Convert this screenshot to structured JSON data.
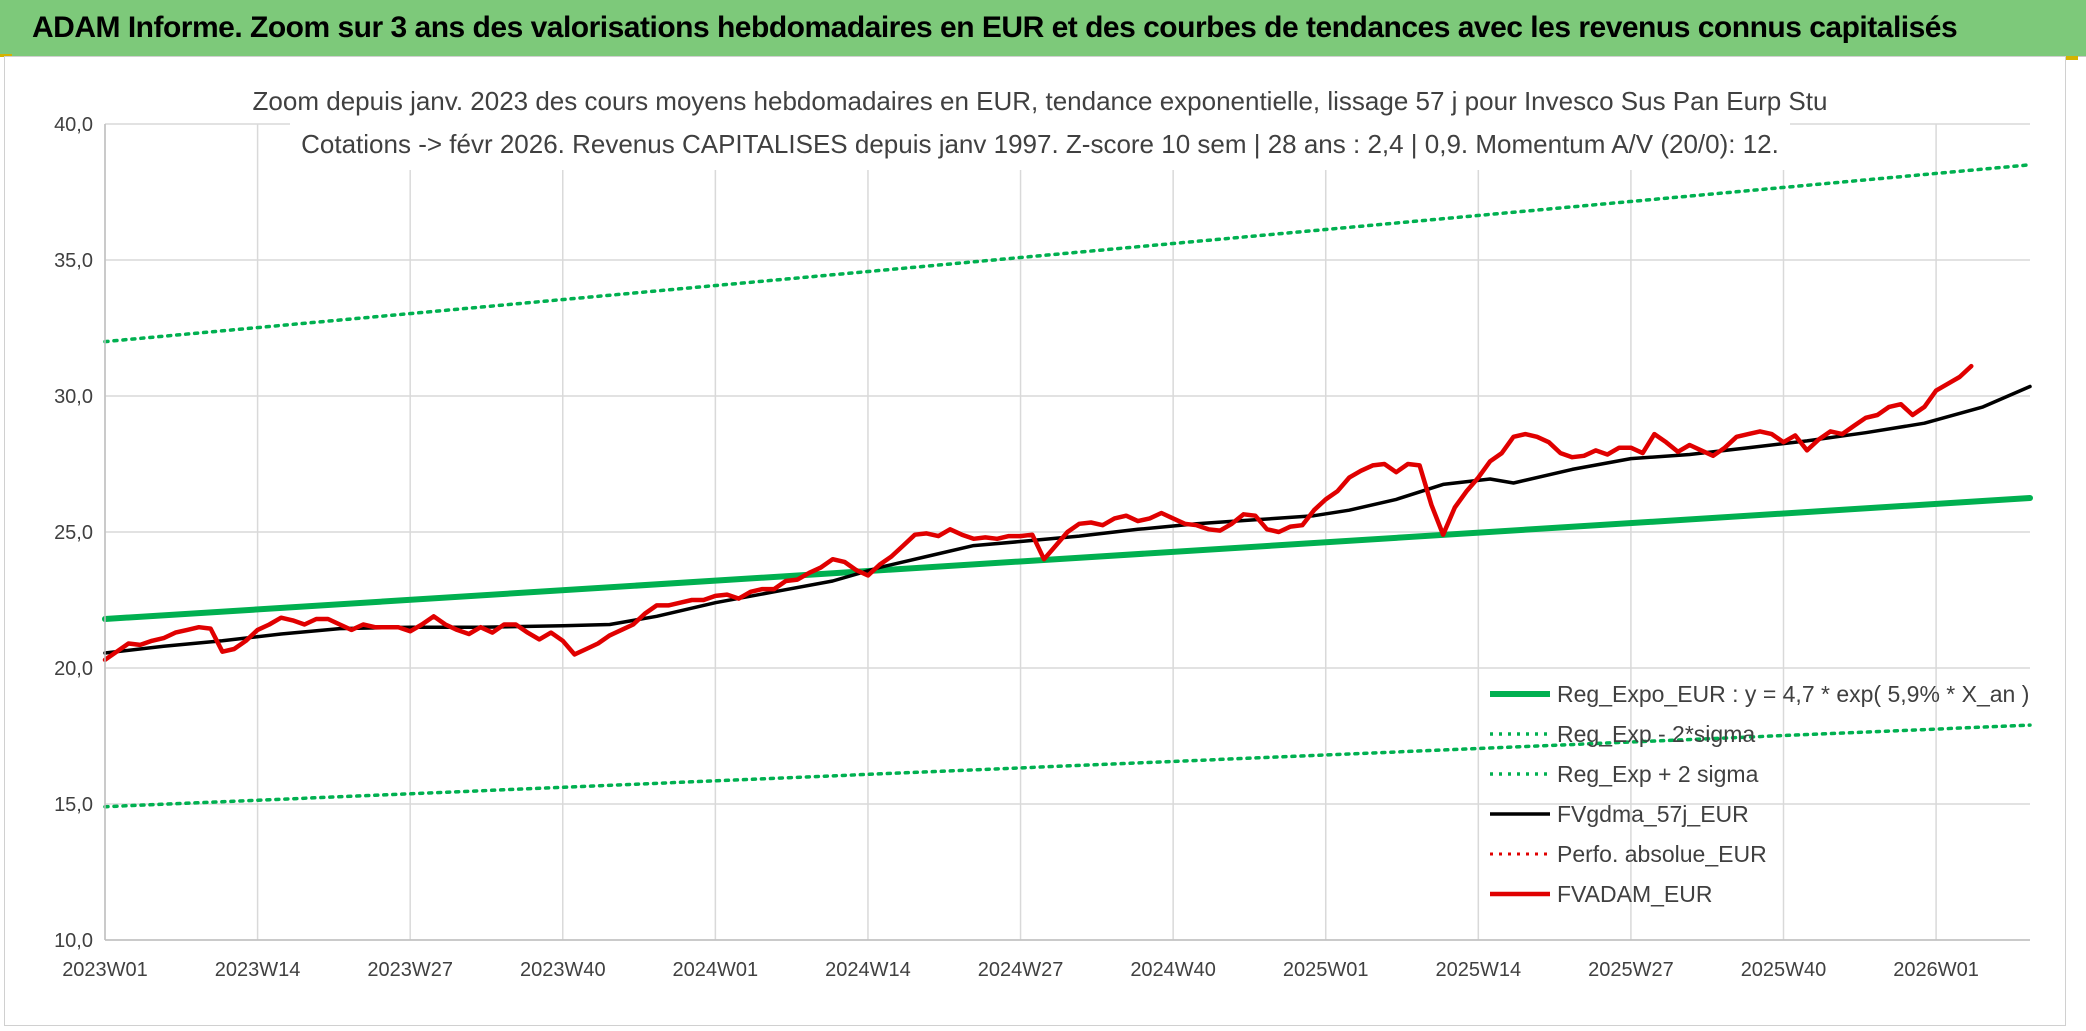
{
  "header": {
    "title": "ADAM Informe. Zoom sur 3 ans des valorisations hebdomadaires en EUR et des courbes de tendances avec les revenus connus capitalisés"
  },
  "chart_data": {
    "type": "line",
    "title_line1": "Zoom depuis janv. 2023 des cours moyens hebdomadaires en EUR, tendance exponentielle, lissage 57 j pour Invesco Sus Pan Eurp Stu",
    "title_line2": "Cotations -> févr 2026. Revenus CAPITALISES depuis janv 1997. Z-score 10 sem | 28 ans : 2,4 | 0,9. Momentum A/V (20/0): 12.",
    "xlabel": "",
    "ylabel": "",
    "ylim": [
      10,
      40
    ],
    "y_ticks": [
      "10,0",
      "15,0",
      "20,0",
      "25,0",
      "30,0",
      "35,0",
      "40,0"
    ],
    "y_tick_values": [
      10,
      15,
      20,
      25,
      30,
      35,
      40
    ],
    "x_ticks": [
      "2023W01",
      "2023W14",
      "2023W27",
      "2023W40",
      "2024W01",
      "2024W14",
      "2024W27",
      "2024W40",
      "2025W01",
      "2025W14",
      "2025W27",
      "2025W40",
      "2026W01"
    ],
    "x_tick_weeks": [
      0,
      13,
      26,
      39,
      52,
      65,
      78,
      91,
      104,
      117,
      130,
      143,
      156
    ],
    "x_max_week": 164,
    "grid": true,
    "legend_position": "bottom-right",
    "series": [
      {
        "name": "Reg_Expo_EUR : y = 4,7 * exp( 5,9% *  X_an )",
        "color": "#00b050",
        "style": "solid",
        "width": 6,
        "points": [
          [
            0,
            21.8
          ],
          [
            164,
            26.25
          ]
        ]
      },
      {
        "name": "Reg_Exp - 2*sigma",
        "color": "#00b050",
        "style": "dotted",
        "width": 3.5,
        "points": [
          [
            0,
            14.9
          ],
          [
            164,
            17.9
          ]
        ]
      },
      {
        "name": "Reg_Exp + 2 sigma",
        "color": "#00b050",
        "style": "dotted",
        "width": 3.5,
        "points": [
          [
            0,
            32.0
          ],
          [
            164,
            38.5
          ]
        ]
      },
      {
        "name": "FVgdma_57j_EUR",
        "color": "#000000",
        "style": "solid",
        "width": 3.5,
        "points": [
          [
            0,
            20.55
          ],
          [
            5,
            20.8
          ],
          [
            10,
            21.0
          ],
          [
            15,
            21.25
          ],
          [
            20,
            21.45
          ],
          [
            26,
            21.5
          ],
          [
            32,
            21.5
          ],
          [
            39,
            21.55
          ],
          [
            43,
            21.6
          ],
          [
            47,
            21.9
          ],
          [
            52,
            22.4
          ],
          [
            57,
            22.8
          ],
          [
            62,
            23.2
          ],
          [
            66,
            23.7
          ],
          [
            70,
            24.1
          ],
          [
            74,
            24.5
          ],
          [
            78,
            24.65
          ],
          [
            83,
            24.85
          ],
          [
            88,
            25.1
          ],
          [
            93,
            25.3
          ],
          [
            98,
            25.45
          ],
          [
            103,
            25.6
          ],
          [
            106,
            25.8
          ],
          [
            110,
            26.2
          ],
          [
            114,
            26.75
          ],
          [
            118,
            26.95
          ],
          [
            120,
            26.8
          ],
          [
            125,
            27.3
          ],
          [
            130,
            27.7
          ],
          [
            135,
            27.85
          ],
          [
            140,
            28.1
          ],
          [
            145,
            28.35
          ],
          [
            150,
            28.65
          ],
          [
            155,
            29.0
          ],
          [
            160,
            29.6
          ],
          [
            164,
            30.35
          ]
        ]
      },
      {
        "name": "Perfo. absolue_EUR",
        "color": "#e00000",
        "style": "dotted",
        "width": 3,
        "points": []
      },
      {
        "name": "FVADAM_EUR",
        "color": "#e00000",
        "style": "solid",
        "width": 4.5,
        "points": [
          [
            0,
            20.3
          ],
          [
            1,
            20.6
          ],
          [
            2,
            20.9
          ],
          [
            3,
            20.85
          ],
          [
            4,
            21.0
          ],
          [
            5,
            21.1
          ],
          [
            6,
            21.3
          ],
          [
            7,
            21.4
          ],
          [
            8,
            21.5
          ],
          [
            9,
            21.45
          ],
          [
            10,
            20.6
          ],
          [
            11,
            20.7
          ],
          [
            12,
            21.0
          ],
          [
            13,
            21.4
          ],
          [
            14,
            21.6
          ],
          [
            15,
            21.85
          ],
          [
            16,
            21.75
          ],
          [
            17,
            21.6
          ],
          [
            18,
            21.8
          ],
          [
            19,
            21.8
          ],
          [
            20,
            21.6
          ],
          [
            21,
            21.4
          ],
          [
            22,
            21.6
          ],
          [
            23,
            21.5
          ],
          [
            24,
            21.5
          ],
          [
            25,
            21.5
          ],
          [
            26,
            21.35
          ],
          [
            27,
            21.6
          ],
          [
            28,
            21.9
          ],
          [
            29,
            21.6
          ],
          [
            30,
            21.4
          ],
          [
            31,
            21.25
          ],
          [
            32,
            21.5
          ],
          [
            33,
            21.3
          ],
          [
            34,
            21.6
          ],
          [
            35,
            21.6
          ],
          [
            36,
            21.3
          ],
          [
            37,
            21.05
          ],
          [
            38,
            21.3
          ],
          [
            39,
            21.0
          ],
          [
            40,
            20.5
          ],
          [
            41,
            20.7
          ],
          [
            42,
            20.9
          ],
          [
            43,
            21.2
          ],
          [
            44,
            21.4
          ],
          [
            45,
            21.6
          ],
          [
            46,
            22.0
          ],
          [
            47,
            22.3
          ],
          [
            48,
            22.3
          ],
          [
            49,
            22.4
          ],
          [
            50,
            22.5
          ],
          [
            51,
            22.5
          ],
          [
            52,
            22.65
          ],
          [
            53,
            22.7
          ],
          [
            54,
            22.55
          ],
          [
            55,
            22.8
          ],
          [
            56,
            22.9
          ],
          [
            57,
            22.9
          ],
          [
            58,
            23.2
          ],
          [
            59,
            23.25
          ],
          [
            60,
            23.5
          ],
          [
            61,
            23.7
          ],
          [
            62,
            24.0
          ],
          [
            63,
            23.9
          ],
          [
            64,
            23.6
          ],
          [
            65,
            23.4
          ],
          [
            66,
            23.8
          ],
          [
            67,
            24.1
          ],
          [
            68,
            24.5
          ],
          [
            69,
            24.9
          ],
          [
            70,
            24.95
          ],
          [
            71,
            24.85
          ],
          [
            72,
            25.1
          ],
          [
            73,
            24.9
          ],
          [
            74,
            24.75
          ],
          [
            75,
            24.8
          ],
          [
            76,
            24.75
          ],
          [
            77,
            24.85
          ],
          [
            78,
            24.85
          ],
          [
            79,
            24.9
          ],
          [
            80,
            24.0
          ],
          [
            81,
            24.5
          ],
          [
            82,
            25.0
          ],
          [
            83,
            25.3
          ],
          [
            84,
            25.35
          ],
          [
            85,
            25.25
          ],
          [
            86,
            25.5
          ],
          [
            87,
            25.6
          ],
          [
            88,
            25.4
          ],
          [
            89,
            25.5
          ],
          [
            90,
            25.7
          ],
          [
            91,
            25.5
          ],
          [
            92,
            25.3
          ],
          [
            93,
            25.25
          ],
          [
            94,
            25.1
          ],
          [
            95,
            25.05
          ],
          [
            96,
            25.3
          ],
          [
            97,
            25.65
          ],
          [
            98,
            25.6
          ],
          [
            99,
            25.1
          ],
          [
            100,
            25.0
          ],
          [
            101,
            25.2
          ],
          [
            102,
            25.25
          ],
          [
            103,
            25.8
          ],
          [
            104,
            26.2
          ],
          [
            105,
            26.5
          ],
          [
            106,
            27.0
          ],
          [
            107,
            27.25
          ],
          [
            108,
            27.45
          ],
          [
            109,
            27.5
          ],
          [
            110,
            27.2
          ],
          [
            111,
            27.5
          ],
          [
            112,
            27.45
          ],
          [
            113,
            26.0
          ],
          [
            114,
            24.9
          ],
          [
            115,
            25.9
          ],
          [
            116,
            26.5
          ],
          [
            117,
            27.0
          ],
          [
            118,
            27.6
          ],
          [
            119,
            27.9
          ],
          [
            120,
            28.5
          ],
          [
            121,
            28.6
          ],
          [
            122,
            28.5
          ],
          [
            123,
            28.3
          ],
          [
            124,
            27.9
          ],
          [
            125,
            27.75
          ],
          [
            126,
            27.8
          ],
          [
            127,
            28.0
          ],
          [
            128,
            27.85
          ],
          [
            129,
            28.1
          ],
          [
            130,
            28.1
          ],
          [
            131,
            27.9
          ],
          [
            132,
            28.6
          ],
          [
            133,
            28.3
          ],
          [
            134,
            27.95
          ],
          [
            135,
            28.2
          ],
          [
            136,
            28.0
          ],
          [
            137,
            27.8
          ],
          [
            138,
            28.1
          ],
          [
            139,
            28.5
          ],
          [
            140,
            28.6
          ],
          [
            141,
            28.7
          ],
          [
            142,
            28.6
          ],
          [
            143,
            28.3
          ],
          [
            144,
            28.55
          ],
          [
            145,
            28.0
          ],
          [
            146,
            28.4
          ],
          [
            147,
            28.7
          ],
          [
            148,
            28.6
          ],
          [
            149,
            28.9
          ],
          [
            150,
            29.2
          ],
          [
            151,
            29.3
          ],
          [
            152,
            29.6
          ],
          [
            153,
            29.7
          ],
          [
            154,
            29.3
          ],
          [
            155,
            29.6
          ],
          [
            156,
            30.2
          ],
          [
            157,
            30.45
          ],
          [
            158,
            30.7
          ],
          [
            159,
            31.1
          ]
        ]
      }
    ]
  }
}
